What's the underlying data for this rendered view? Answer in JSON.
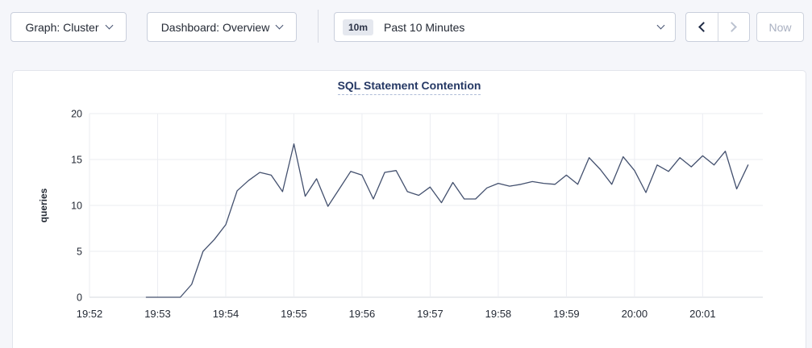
{
  "toolbar": {
    "graph_dropdown": {
      "label": "Graph: Cluster"
    },
    "dashboard_dropdown": {
      "label": "Dashboard: Overview"
    },
    "time_range": {
      "badge": "10m",
      "label": "Past 10 Minutes"
    },
    "now_button": {
      "label": "Now"
    },
    "icons": {
      "graph_chevron": "chevron-down",
      "dashboard_chevron": "chevron-down",
      "time_chevron": "chevron-down",
      "prev": "chevron-left",
      "next": "chevron-right"
    }
  },
  "chart_data": {
    "type": "line",
    "title": "SQL Statement Contention",
    "ylabel": "queries",
    "ylim": [
      0,
      20
    ],
    "yticks": [
      0,
      5,
      10,
      15,
      20
    ],
    "x_tick_labels": [
      "19:52",
      "19:53",
      "19:54",
      "19:55",
      "19:56",
      "19:57",
      "19:58",
      "19:59",
      "20:00",
      "20:01"
    ],
    "x_tick_seconds": [
      0,
      60,
      120,
      180,
      240,
      300,
      360,
      420,
      480,
      540
    ],
    "x_domain_seconds": [
      0,
      593
    ],
    "grid": true,
    "legend": "none",
    "series": [
      {
        "name": "queries",
        "start_second": 50,
        "interval_seconds": 10,
        "values": [
          0,
          0,
          0,
          0,
          1.4,
          5.0,
          6.3,
          7.9,
          11.6,
          12.7,
          13.6,
          13.3,
          11.5,
          16.7,
          11.0,
          12.9,
          9.9,
          11.8,
          13.7,
          13.3,
          10.7,
          13.6,
          13.8,
          11.5,
          11.1,
          12.0,
          10.3,
          12.5,
          10.7,
          10.7,
          11.9,
          12.4,
          12.1,
          12.3,
          12.6,
          12.4,
          12.3,
          13.3,
          12.3,
          15.2,
          13.9,
          12.3,
          15.3,
          13.8,
          11.4,
          14.4,
          13.7,
          15.2,
          14.2,
          15.4,
          14.4,
          15.9,
          11.8,
          14.4
        ]
      }
    ],
    "colors": {
      "line": "#43506e",
      "grid": "#ebedf2",
      "zero_axis": "#d5d8df",
      "tick_text": "#242a35",
      "title": "#253864"
    }
  }
}
